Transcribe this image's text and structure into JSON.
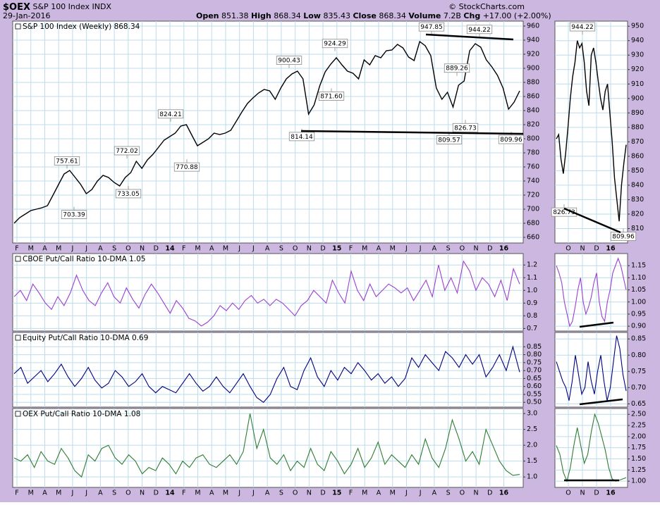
{
  "header": {
    "symbol": "$OEX",
    "name": "S&P 100 Index",
    "exchange": "INDX",
    "date": "29-Jan-2016",
    "open_label": "Open",
    "open": 851.38,
    "high_label": "High",
    "high": 868.34,
    "low_label": "Low",
    "low": 835.43,
    "close_label": "Close",
    "close": 868.34,
    "volume_label": "Volume",
    "volume": "7.2B",
    "chg_label": "Chg",
    "chg": "+17.00 (+2.00%)",
    "copyright": "© StockCharts.com"
  },
  "chart_data": [
    {
      "type": "line",
      "title": "S&P 100 Index (Weekly) 868.34",
      "color": "#000000",
      "grid": true,
      "values": [
        680,
        688,
        693,
        698,
        700,
        702,
        705,
        720,
        735,
        750,
        755,
        745,
        735,
        722,
        728,
        740,
        748,
        745,
        738,
        733,
        745,
        752,
        768,
        758,
        770,
        778,
        788,
        798,
        803,
        808,
        818,
        820,
        805,
        790,
        795,
        800,
        808,
        806,
        808,
        812,
        825,
        838,
        850,
        858,
        865,
        870,
        868,
        856,
        872,
        885,
        892,
        896,
        885,
        835,
        848,
        875,
        895,
        906,
        915,
        905,
        896,
        893,
        885,
        912,
        905,
        918,
        915,
        925,
        926,
        934,
        929,
        916,
        911,
        938,
        932,
        918,
        872,
        856,
        866,
        845,
        876,
        882,
        925,
        935,
        930,
        912,
        902,
        890,
        872,
        842,
        852,
        868
      ],
      "ylim": [
        652,
        967
      ],
      "yticks": [
        660,
        680,
        700,
        720,
        740,
        760,
        780,
        800,
        820,
        840,
        860,
        880,
        900,
        920,
        940,
        960
      ],
      "annotations": [
        757.61,
        703.39,
        772.02,
        733.05,
        824.21,
        770.88,
        900.43,
        814.14,
        924.29,
        {
          "value": 871.6,
          "label": "871.60"
        },
        947.85,
        889.26,
        826.73,
        809.57,
        944.22,
        809.96
      ],
      "x_labels": [
        "F",
        "M",
        "A",
        "M",
        "J",
        "J",
        "A",
        "S",
        "O",
        "N",
        "D",
        "14",
        "F",
        "M",
        "A",
        "M",
        "J",
        "J",
        "A",
        "S",
        "O",
        "N",
        "D",
        "15",
        "F",
        "M",
        "A",
        "M",
        "J",
        "J",
        "A",
        "S",
        "O",
        "N",
        "D",
        "16"
      ]
    },
    {
      "type": "line",
      "color": "#000000",
      "grid": true,
      "values": [
        872,
        875,
        858,
        848,
        862,
        880,
        900,
        915,
        925,
        940,
        935,
        938,
        925,
        905,
        895,
        930,
        935,
        925,
        912,
        900,
        892,
        905,
        910,
        890,
        870,
        845,
        830,
        815,
        840,
        855,
        868
      ],
      "ylim": [
        800,
        953.5
      ],
      "yticks": [
        810,
        820,
        830,
        840,
        850,
        860,
        870,
        880,
        890,
        900,
        910,
        920,
        930,
        940,
        950
      ],
      "annotations": [
        944.22,
        826.73,
        809.96
      ],
      "x_labels": [
        "O",
        "N",
        "D",
        "16"
      ]
    },
    {
      "type": "line",
      "title": "CBOE Put/Call Ratio 10-DMA 1.05",
      "color": "#9a3fd0",
      "grid": true,
      "values": [
        0.95,
        1.0,
        0.92,
        1.05,
        0.98,
        0.9,
        0.85,
        0.95,
        0.88,
        0.98,
        1.12,
        1.0,
        0.92,
        0.88,
        0.98,
        1.06,
        0.95,
        0.9,
        1.02,
        0.93,
        0.86,
        0.97,
        1.05,
        0.98,
        0.9,
        0.82,
        0.92,
        0.86,
        0.78,
        0.76,
        0.72,
        0.75,
        0.8,
        0.88,
        0.84,
        0.9,
        0.85,
        0.92,
        0.96,
        0.9,
        0.93,
        0.88,
        0.93,
        0.9,
        0.85,
        0.8,
        0.88,
        0.92,
        1.0,
        0.95,
        0.9,
        1.08,
        0.98,
        0.9,
        1.15,
        1.0,
        0.92,
        1.05,
        0.95,
        1.0,
        1.05,
        1.02,
        0.98,
        1.02,
        0.92,
        1.0,
        1.08,
        0.95,
        1.2,
        1.0,
        1.1,
        0.98,
        1.23,
        1.15,
        1.0,
        1.1,
        1.05,
        0.95,
        1.08,
        0.92,
        1.17,
        1.05
      ],
      "ylim": [
        0.68,
        1.29
      ],
      "yticks": [
        0.7,
        0.8,
        0.9,
        {
          "value": 1,
          "label": "1.0"
        },
        1.1,
        1.2
      ]
    },
    {
      "type": "line",
      "color": "#9a3fd0",
      "grid": true,
      "values": [
        1.15,
        1.12,
        1.08,
        1.0,
        0.95,
        0.9,
        0.92,
        0.98,
        1.05,
        1.1,
        1.0,
        0.95,
        0.98,
        1.02,
        1.08,
        1.12,
        1.0,
        0.94,
        0.92,
        1.0,
        1.05,
        1.12,
        1.15,
        1.18,
        1.15,
        1.1,
        1.05
      ],
      "ylim": [
        0.88,
        1.2
      ],
      "yticks": [
        {
          "value": 0.9,
          "label": "0.90"
        },
        0.95,
        {
          "value": 1,
          "label": "1.00"
        },
        1.05,
        {
          "value": 1.1,
          "label": "1.10"
        },
        1.15
      ]
    },
    {
      "type": "line",
      "title": "Equity Put/Call Ratio 10-DMA 0.69",
      "color": "#000080",
      "grid": true,
      "values": [
        0.68,
        0.72,
        0.62,
        0.66,
        0.7,
        0.63,
        0.68,
        0.74,
        0.66,
        0.6,
        0.65,
        0.72,
        0.64,
        0.59,
        0.62,
        0.7,
        0.66,
        0.6,
        0.63,
        0.68,
        0.6,
        0.56,
        0.6,
        0.58,
        0.56,
        0.62,
        0.68,
        0.62,
        0.57,
        0.6,
        0.66,
        0.6,
        0.56,
        0.62,
        0.68,
        0.6,
        0.53,
        0.5,
        0.55,
        0.65,
        0.72,
        0.6,
        0.58,
        0.7,
        0.78,
        0.66,
        0.6,
        0.7,
        0.64,
        0.72,
        0.68,
        0.75,
        0.7,
        0.64,
        0.68,
        0.62,
        0.66,
        0.6,
        0.65,
        0.78,
        0.72,
        0.8,
        0.75,
        0.7,
        0.82,
        0.78,
        0.72,
        0.8,
        0.74,
        0.8,
        0.66,
        0.72,
        0.8,
        0.7,
        0.85,
        0.69
      ],
      "ylim": [
        0.47,
        0.94
      ],
      "yticks": [
        {
          "value": 0.5,
          "label": "0.50"
        },
        0.55,
        {
          "value": 0.6,
          "label": "0.60"
        },
        0.65,
        {
          "value": 0.7,
          "label": "0.70"
        },
        0.75,
        {
          "value": 0.8,
          "label": "0.80"
        },
        0.85
      ]
    },
    {
      "type": "line",
      "color": "#000080",
      "grid": true,
      "values": [
        0.78,
        0.75,
        0.72,
        0.7,
        0.66,
        0.72,
        0.8,
        0.74,
        0.68,
        0.7,
        0.78,
        0.72,
        0.68,
        0.75,
        0.8,
        0.72,
        0.66,
        0.7,
        0.78,
        0.86,
        0.82,
        0.74,
        0.69
      ],
      "ylim": [
        0.64,
        0.87
      ],
      "yticks": [
        0.65,
        {
          "value": 0.7,
          "label": "0.70"
        },
        0.75,
        {
          "value": 0.8,
          "label": "0.80"
        },
        0.85
      ]
    },
    {
      "type": "line",
      "title": "OEX Put/Call Ratio 10-DMA 1.08",
      "color": "#2e7d32",
      "grid": true,
      "values": [
        1.6,
        1.5,
        1.7,
        1.3,
        1.8,
        1.5,
        1.4,
        1.9,
        1.6,
        1.2,
        1.0,
        1.7,
        1.5,
        1.9,
        2.0,
        1.6,
        1.4,
        1.7,
        1.5,
        1.1,
        1.3,
        1.2,
        1.6,
        1.4,
        1.1,
        1.5,
        1.3,
        1.6,
        1.7,
        1.4,
        1.3,
        1.5,
        1.7,
        1.4,
        1.8,
        3.0,
        1.9,
        2.5,
        1.6,
        1.4,
        1.7,
        1.2,
        1.5,
        1.3,
        1.9,
        1.4,
        1.2,
        1.8,
        1.5,
        1.1,
        1.4,
        1.9,
        1.3,
        1.6,
        2.1,
        1.4,
        1.7,
        1.5,
        1.3,
        1.7,
        1.4,
        2.2,
        1.6,
        1.3,
        1.9,
        2.8,
        2.2,
        1.5,
        1.8,
        1.4,
        2.5,
        2.0,
        1.5,
        1.2,
        1.05,
        1.08
      ],
      "ylim": [
        0.67,
        3.16
      ],
      "yticks": [
        {
          "value": 1,
          "label": "1.0"
        },
        1.5,
        {
          "value": 2,
          "label": "2.0"
        },
        2.5,
        {
          "value": 3,
          "label": "3.0"
        }
      ],
      "x_labels": [
        "F",
        "M",
        "A",
        "M",
        "J",
        "J",
        "A",
        "S",
        "O",
        "N",
        "D",
        "14",
        "F",
        "M",
        "A",
        "M",
        "J",
        "J",
        "A",
        "S",
        "O",
        "N",
        "D",
        "15",
        "F",
        "M",
        "A",
        "M",
        "J",
        "J",
        "A",
        "S",
        "O",
        "N",
        "D",
        "16"
      ]
    },
    {
      "type": "line",
      "color": "#2e7d32",
      "grid": true,
      "values": [
        1.8,
        1.6,
        1.2,
        1.0,
        1.3,
        1.8,
        2.2,
        1.8,
        1.4,
        1.6,
        2.1,
        2.5,
        2.3,
        2.0,
        1.7,
        1.3,
        1.05,
        1.0,
        1.02,
        1.05,
        1.08
      ],
      "ylim": [
        0.86,
        2.63
      ],
      "yticks": [
        {
          "value": 1,
          "label": "1.00"
        },
        1.25,
        {
          "value": 1.5,
          "label": "1.50"
        },
        1.75,
        {
          "value": 2,
          "label": "2.00"
        },
        2.25,
        {
          "value": 2.5,
          "label": "2.50"
        }
      ],
      "x_labels": [
        "O",
        "N",
        "D",
        "16"
      ]
    }
  ]
}
